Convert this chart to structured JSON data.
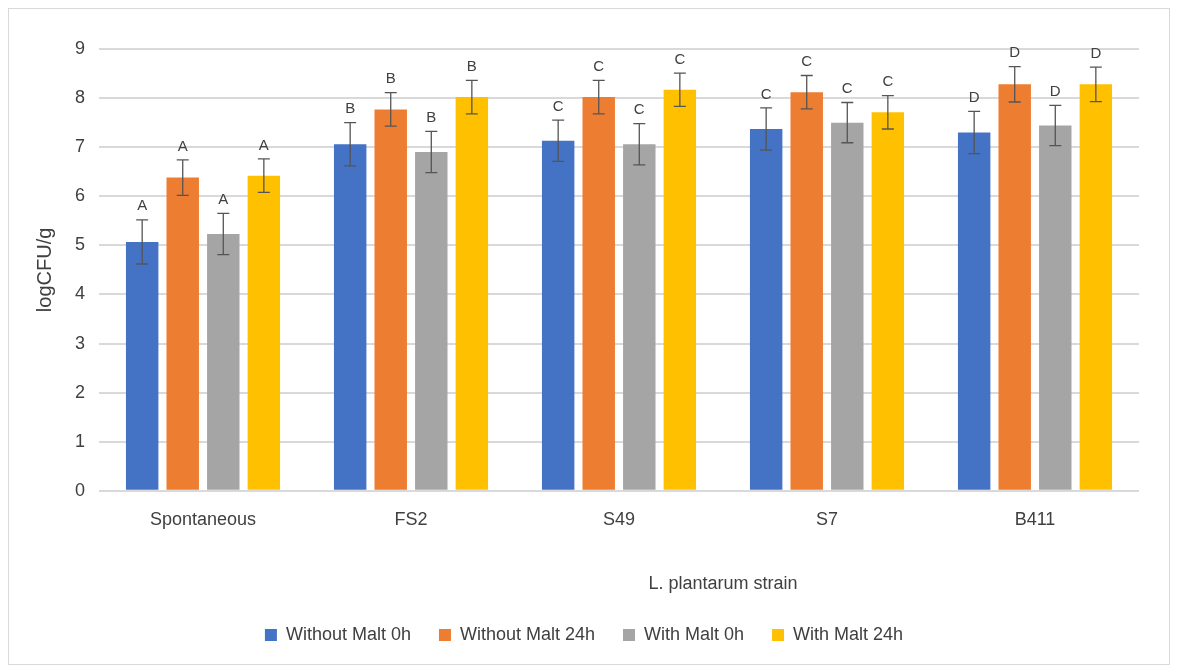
{
  "chart_data": {
    "type": "bar",
    "ylabel": "logCFU/g",
    "xlabel": "L. plantarum strain",
    "categories": [
      "Spontaneous",
      "FS2",
      "S49",
      "S7",
      "B411"
    ],
    "series": [
      {
        "name": "Without Malt 0h",
        "color": "#4472c4",
        "values": [
          5.07,
          7.06,
          7.13,
          7.37,
          7.3
        ],
        "errors": [
          0.45,
          0.44,
          0.42,
          0.43,
          0.43
        ],
        "value_labels": [
          "A",
          "B",
          "C",
          "C",
          "D"
        ]
      },
      {
        "name": "Without Malt 24h",
        "color": "#ed7d31",
        "values": [
          6.38,
          7.77,
          8.02,
          8.12,
          8.28
        ],
        "errors": [
          0.36,
          0.34,
          0.34,
          0.34,
          0.36
        ],
        "value_labels": [
          "A",
          "B",
          "C",
          "C",
          "D"
        ]
      },
      {
        "name": "With Malt 0h",
        "color": "#a5a5a5",
        "values": [
          5.23,
          6.9,
          7.06,
          7.5,
          7.44
        ],
        "errors": [
          0.42,
          0.42,
          0.42,
          0.41,
          0.41
        ],
        "value_labels": [
          "A",
          "B",
          "C",
          "C",
          "D"
        ]
      },
      {
        "name": "With Malt 24h",
        "color": "#ffc000",
        "values": [
          6.42,
          8.02,
          8.17,
          7.71,
          8.28
        ],
        "errors": [
          0.34,
          0.34,
          0.34,
          0.34,
          0.35
        ],
        "value_labels": [
          "A",
          "B",
          "C",
          "C",
          "D"
        ]
      }
    ],
    "ylim": [
      0,
      9
    ],
    "yticks": [
      0,
      1,
      2,
      3,
      4,
      5,
      6,
      7,
      8,
      9
    ],
    "grid": "y",
    "legend": "bottom"
  }
}
